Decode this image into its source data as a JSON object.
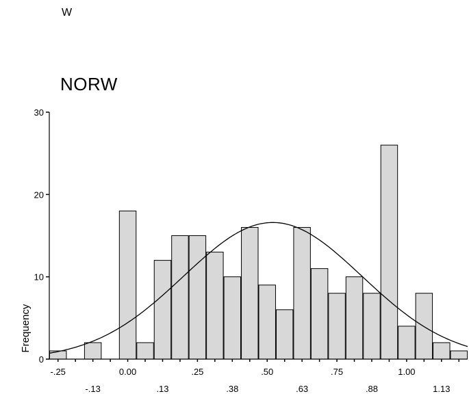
{
  "header": {
    "stray_text": "W"
  },
  "chart_data": {
    "type": "bar",
    "title": "NORW",
    "xlabel": "",
    "ylabel": "Frequency",
    "ylim": [
      0,
      30
    ],
    "yticks": [
      "0",
      "10",
      "20",
      "30"
    ],
    "xticks_upper": [
      "-.25",
      "0.00",
      ".25",
      ".50",
      ".75",
      "1.00"
    ],
    "xticks_lower": [
      "-.13",
      ".13",
      ".38",
      ".63",
      ".88",
      "1.13"
    ],
    "bins_center": [
      -0.25,
      -0.1875,
      -0.125,
      -0.0625,
      0.0,
      0.0625,
      0.125,
      0.1875,
      0.25,
      0.3125,
      0.375,
      0.4375,
      0.5,
      0.5625,
      0.625,
      0.6875,
      0.75,
      0.8125,
      0.875,
      0.9375,
      1.0,
      1.0625,
      1.125,
      1.1875
    ],
    "values": [
      1,
      0,
      2,
      0,
      18,
      2,
      12,
      15,
      15,
      13,
      10,
      16,
      9,
      6,
      16,
      11,
      8,
      10,
      8,
      26,
      4,
      8,
      2,
      1
    ],
    "normal_curve": {
      "mean": 0.52,
      "sd": 0.32
    },
    "grid": false
  }
}
